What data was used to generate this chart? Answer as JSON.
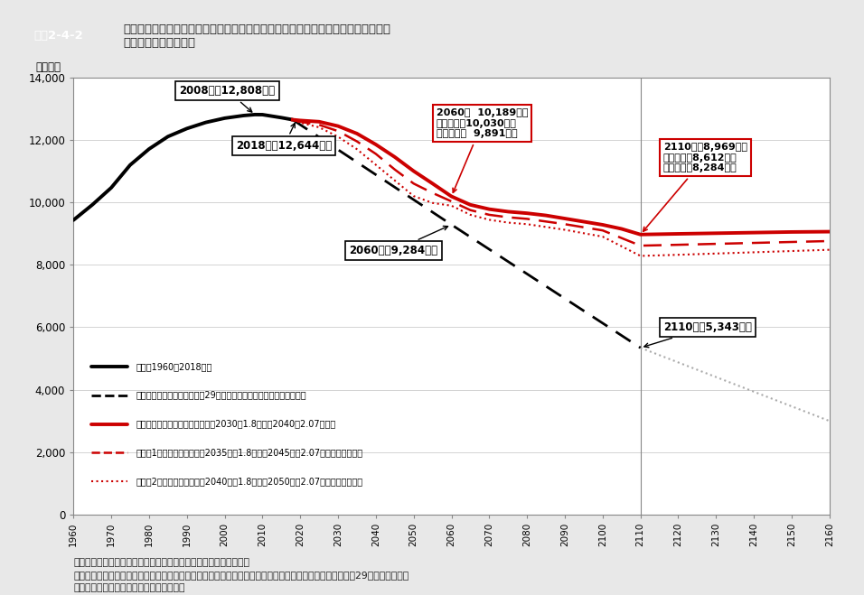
{
  "header_label": "図表2-4-2",
  "header_title": "人口の推移と長期的な見通し（まち・ひと・しごと創生長期ビジョン（令和元年改\n訂版）における推計）",
  "ylabel": "（万人）",
  "ylim": [
    0,
    14000
  ],
  "yticks": [
    0,
    2000,
    4000,
    6000,
    8000,
    10000,
    12000,
    14000
  ],
  "xlim": [
    1960,
    2160
  ],
  "xticks": [
    1960,
    1970,
    1980,
    1990,
    2000,
    2010,
    2020,
    2030,
    2040,
    2050,
    2060,
    2070,
    2080,
    2090,
    2100,
    2110,
    2120,
    2130,
    2140,
    2150,
    2160
  ],
  "bg_color": "#e8e8e8",
  "plot_bg_color": "#ffffff",
  "header_bg": "#4472c4",
  "source_text": "資料：「まち・ひと・しごと創生長期ジョン（令和元年改訂版）」\n（注）　実績は総務省統計局「国勢調査」等、国立社会保障・人口問題研究所「日本の将来推計人口（平成29年推計）」は出\n　　　生中位（死亡中位）の仮定による。",
  "legend_labels": [
    "実績（1960〜2018年）",
    "「日本の将来推計人口（平成29年推計）」（出生中位（死亡中位））",
    "合計特殊出生率が上昇した場合（2030年1.8程度、2040年2.07程度）",
    "（参考1）合計特殊出生率が2035年に1.8程度、2045年に2.07程度となった場合",
    "（参考2）合計特殊出生率が2040年に1.8程度、2050年に2.07程度となった場合"
  ],
  "annot_2008_text": "2008年　12,808万人",
  "annot_2018_text": "2018年　12,644万人",
  "annot_2060_dashed_text": "2060年　9,284万人",
  "annot_2060_red_text": "2060年  10,189万人\n（参考１）10,030万人\n（参考２）  9,891万人",
  "annot_2110_red_text": "2110年　8,969万人\n（参考１）8,612万人\n（参考２）8,284万人",
  "annot_2110_dashed_text": "2110年　5,343万人"
}
